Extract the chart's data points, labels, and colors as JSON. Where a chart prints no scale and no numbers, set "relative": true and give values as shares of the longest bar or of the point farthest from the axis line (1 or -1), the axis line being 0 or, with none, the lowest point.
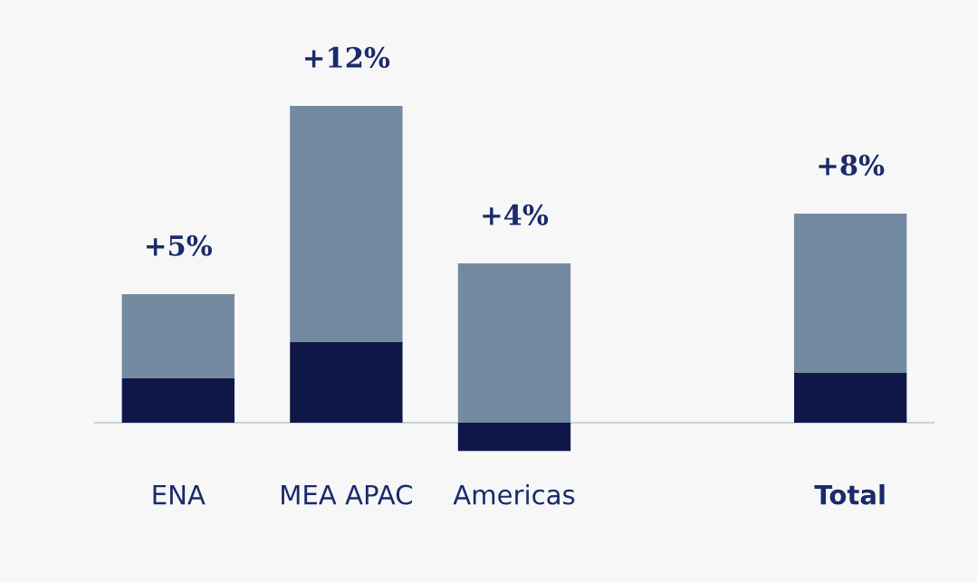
{
  "chart_data": {
    "type": "bar",
    "stacked": true,
    "relative": true,
    "categories": [
      "ENA",
      "MEA APAC",
      "Americas",
      null,
      "Total"
    ],
    "series": [
      {
        "color": "#0f1748",
        "values": [
          0.14,
          0.254,
          -0.089,
          null,
          0.157
        ]
      },
      {
        "color": "#738aa1",
        "values": [
          0.266,
          0.746,
          0.503,
          null,
          0.503
        ]
      }
    ],
    "annotations": [
      {
        "text": "+5%",
        "x": "ENA",
        "y": 0.406
      },
      {
        "text": "+12%",
        "x": "MEA APAC",
        "y": 1.0
      },
      {
        "text": "+4%",
        "x": "Americas",
        "y": 0.503
      },
      {
        "text": "+8%",
        "x": "Total",
        "y": 0.66
      }
    ],
    "grid": false,
    "legend": false
  }
}
